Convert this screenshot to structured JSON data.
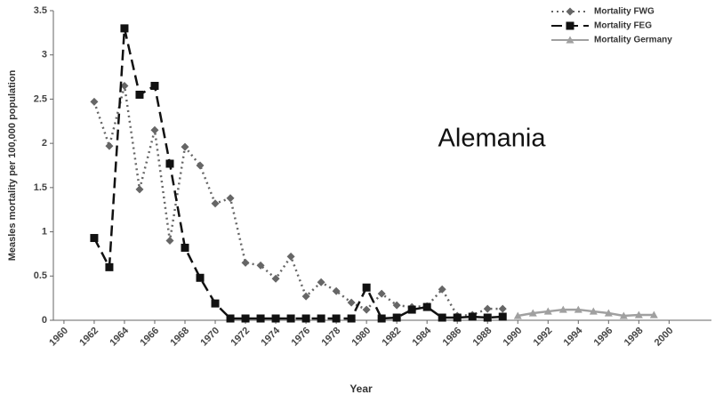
{
  "chart_data": {
    "type": "line",
    "annotation": "Alemania",
    "x_label": "Year",
    "y_label": "Measles mortality per 100,000 population",
    "x": [
      1962,
      1963,
      1964,
      1965,
      1966,
      1967,
      1968,
      1969,
      1970,
      1971,
      1972,
      1973,
      1974,
      1975,
      1976,
      1977,
      1978,
      1979,
      1980,
      1981,
      1982,
      1983,
      1984,
      1985,
      1986,
      1987,
      1988,
      1989,
      1990,
      1991,
      1992,
      1993,
      1994,
      1995,
      1996,
      1997,
      1998,
      1999
    ],
    "series": [
      {
        "name": "Mortality FWG",
        "color": "#666666",
        "marker": "diamond",
        "line_style": "dotted",
        "values": [
          2.47,
          1.97,
          2.65,
          1.48,
          2.15,
          0.9,
          1.96,
          1.75,
          1.32,
          1.38,
          0.65,
          0.62,
          0.47,
          0.72,
          0.27,
          0.43,
          0.33,
          0.2,
          0.12,
          0.3,
          0.17,
          0.15,
          0.16,
          0.35,
          0.05,
          0.06,
          0.13,
          0.13,
          null,
          null,
          null,
          null,
          null,
          null,
          null,
          null,
          null,
          null
        ]
      },
      {
        "name": "Mortality FEG",
        "color": "#111111",
        "marker": "square",
        "line_style": "dashed",
        "values": [
          0.93,
          0.6,
          3.3,
          2.55,
          2.65,
          1.77,
          0.82,
          0.48,
          0.19,
          0.02,
          0.02,
          0.02,
          0.02,
          0.02,
          0.02,
          0.02,
          0.02,
          0.02,
          0.37,
          0.02,
          0.03,
          0.12,
          0.15,
          0.03,
          0.03,
          0.04,
          0.03,
          0.04,
          null,
          null,
          null,
          null,
          null,
          null,
          null,
          null,
          null,
          null
        ]
      },
      {
        "name": "Mortality Germany",
        "color": "#a0a0a0",
        "marker": "triangle",
        "line_style": "solid",
        "values": [
          null,
          null,
          null,
          null,
          null,
          null,
          null,
          null,
          null,
          null,
          null,
          null,
          null,
          null,
          null,
          null,
          null,
          null,
          null,
          null,
          null,
          null,
          null,
          null,
          null,
          null,
          null,
          null,
          0.05,
          0.08,
          0.1,
          0.12,
          0.12,
          0.1,
          0.08,
          0.05,
          0.06,
          0.06
        ]
      }
    ],
    "xlim": [
      1959.3,
      2002.8
    ],
    "xticks": [
      1960,
      1962,
      1964,
      1966,
      1968,
      1970,
      1972,
      1974,
      1976,
      1978,
      1980,
      1982,
      1984,
      1986,
      1988,
      1990,
      1992,
      1994,
      1996,
      1998,
      2000
    ],
    "ylim": [
      0,
      3.5
    ],
    "yticks": [
      0,
      0.5,
      1,
      1.5,
      2,
      2.5,
      3,
      3.5
    ]
  }
}
